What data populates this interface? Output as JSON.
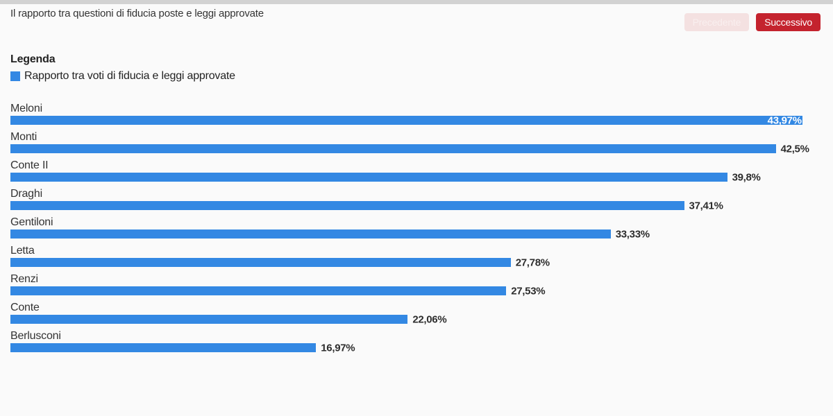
{
  "page": {
    "title": "Il rapporto tra questioni di fiducia poste e leggi approvate"
  },
  "nav": {
    "prev_label": "Precedente",
    "next_label": "Successivo"
  },
  "legend": {
    "heading": "Legenda",
    "item_label": "Rapporto tra voti di fiducia e leggi approvate"
  },
  "colors": {
    "bar_blue": "#3388e3",
    "button_red": "#c4232e",
    "button_disabled_bg": "#f4e1e1",
    "page_background": "#fafafa"
  },
  "chart_data": {
    "type": "bar",
    "orientation": "horizontal",
    "title": "Il rapporto tra questioni di fiducia poste e leggi approvate",
    "series_name": "Rapporto tra voti di fiducia e leggi approvate",
    "categories": [
      "Meloni",
      "Monti",
      "Conte II",
      "Draghi",
      "Gentiloni",
      "Letta",
      "Renzi",
      "Conte",
      "Berlusconi"
    ],
    "values": [
      43.97,
      42.5,
      39.8,
      37.41,
      33.33,
      27.78,
      27.53,
      22.06,
      16.97
    ],
    "value_labels": [
      "43,97%",
      "42,5%",
      "39,8%",
      "37,41%",
      "33,33%",
      "27,78%",
      "27,53%",
      "22,06%",
      "16,97%"
    ],
    "unit": "%",
    "xlim": [
      0,
      44
    ],
    "grid": false,
    "legend_position": "top-left",
    "sort": "descending"
  }
}
